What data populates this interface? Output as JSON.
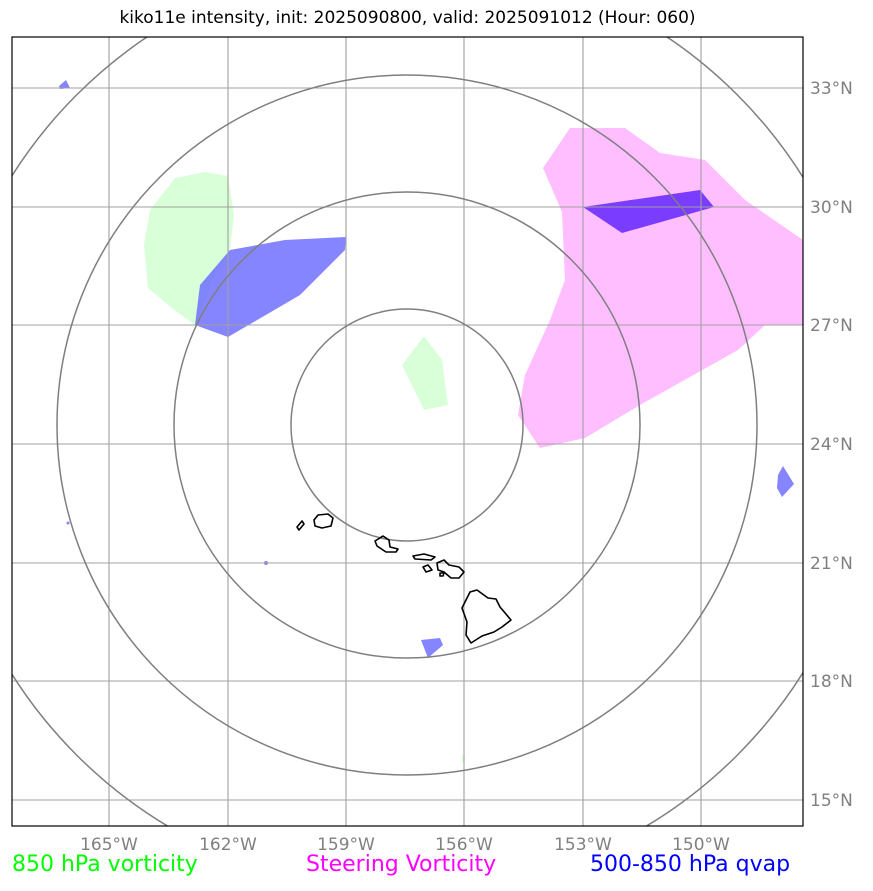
{
  "title": "kiko11e intensity, init: 2025090800, valid: 2025091012 (Hour: 060)",
  "map": {
    "longitude_labels": [
      "165°W",
      "162°W",
      "159°W",
      "156°W",
      "153°W",
      "150°W"
    ],
    "latitude_labels": [
      "33°N",
      "30°N",
      "27°N",
      "24°N",
      "21°N",
      "18°N",
      "15°N"
    ],
    "extent": {
      "lon_min": -167.4,
      "lon_max": -147.4,
      "lat_min": 14.7,
      "lat_max": 34.7
    },
    "range_ring_count": 4
  },
  "legend": [
    {
      "label": "850 hPa vorticity",
      "color": "#00ff00"
    },
    {
      "label": "Steering Vorticity",
      "color": "#ff00ff"
    },
    {
      "label": "500-850 hPa qvap",
      "color": "#0000ff"
    }
  ],
  "colors": {
    "vorticity_850": "#ccffcc",
    "steering_vorticity": "#ffb3ff",
    "qvap": "#6666ff",
    "overlap": "#7a3cff",
    "grid": "#a0a0a0",
    "rings": "#7f7f7f",
    "coastline": "#000000"
  }
}
